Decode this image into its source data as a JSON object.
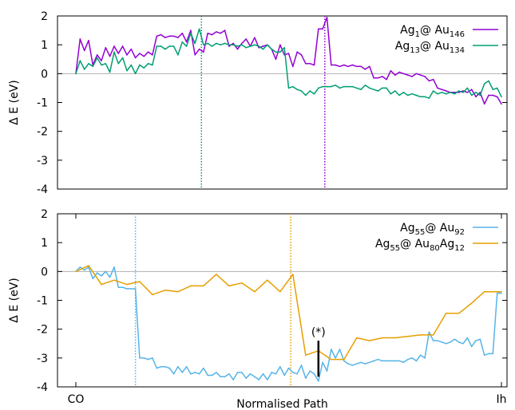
{
  "chart_data": [
    {
      "type": "line",
      "ylabel": "Δ E (eV)",
      "xlabel": "",
      "ylim": [
        -4,
        2
      ],
      "yticks": [
        2,
        1,
        0,
        -1,
        -2,
        -3,
        -4
      ],
      "xlim": [
        0,
        100
      ],
      "xtick_labels": [],
      "reference_line": 0,
      "legend_position": "top-right",
      "vlines": [
        {
          "x": 29.5,
          "series": "Ag13@Au134"
        },
        {
          "x": 58.5,
          "series": "Ag1@Au146"
        }
      ],
      "series": [
        {
          "name": "Ag1@ Au146",
          "legend": {
            "parts": [
              {
                "t": "Ag"
              },
              {
                "t": "1",
                "sub": true
              },
              {
                "t": "@ Au"
              },
              {
                "t": "146",
                "sub": true
              }
            ]
          },
          "color": "#9400d3",
          "x": [
            0,
            1,
            2,
            3,
            4,
            5,
            6,
            7,
            8,
            9,
            10,
            11,
            12,
            13,
            14,
            15,
            16,
            17,
            18,
            19,
            20,
            21,
            22,
            23,
            24,
            25,
            26,
            27,
            28,
            29,
            30,
            31,
            32,
            33,
            34,
            35,
            36,
            37,
            38,
            39,
            40,
            41,
            42,
            43,
            44,
            45,
            46,
            47,
            48,
            49,
            50,
            51,
            52,
            53,
            54,
            55,
            56,
            57,
            58,
            59,
            60,
            61,
            62,
            63,
            64,
            65,
            66,
            67,
            68,
            69,
            70,
            71,
            72,
            73,
            74,
            75,
            76,
            77,
            78,
            79,
            80,
            81,
            82,
            83,
            84,
            85,
            86,
            87,
            88,
            89,
            90,
            91,
            92,
            93,
            94,
            95,
            96,
            97,
            98,
            99,
            100
          ],
          "y": [
            0,
            1.2,
            0.8,
            1.15,
            0.3,
            0.65,
            0.45,
            0.9,
            0.6,
            0.95,
            0.7,
            0.95,
            0.65,
            0.85,
            0.55,
            0.7,
            0.6,
            0.75,
            0.65,
            1.3,
            1.35,
            1.25,
            1.3,
            1.3,
            1.25,
            1.4,
            1.1,
            1.5,
            0.65,
            0.85,
            0.75,
            1.4,
            1.35,
            1.45,
            1.4,
            1.5,
            0.95,
            1.05,
            0.85,
            1.05,
            1.2,
            0.95,
            1.25,
            0.9,
            0.95,
            1.0,
            0.85,
            0.5,
            1.0,
            0.65,
            0.7,
            0.25,
            0.75,
            0.65,
            0.35,
            0.35,
            0.3,
            1.55,
            1.55,
            1.95,
            0.3,
            0.3,
            0.25,
            0.3,
            0.25,
            0.3,
            0.25,
            0.25,
            0.15,
            0.25,
            -0.15,
            -0.15,
            -0.1,
            -0.2,
            0.1,
            -0.05,
            0.05,
            0.0,
            -0.05,
            -0.1,
            0.0,
            -0.05,
            -0.1,
            -0.25,
            -0.2,
            -0.5,
            -0.55,
            -0.6,
            -0.65,
            -0.65,
            -0.65,
            -0.6,
            -0.65,
            -0.55,
            -0.8,
            -0.65,
            -1.05,
            -0.75,
            -0.75,
            -0.8,
            -1.05
          ]
        },
        {
          "name": "Ag13@ Au134",
          "legend": {
            "parts": [
              {
                "t": "Ag"
              },
              {
                "t": "13",
                "sub": true
              },
              {
                "t": "@ Au"
              },
              {
                "t": "134",
                "sub": true
              }
            ]
          },
          "color": "#009e73",
          "x": [
            0,
            1,
            2,
            3,
            4,
            5,
            6,
            7,
            8,
            9,
            10,
            11,
            12,
            13,
            14,
            15,
            16,
            17,
            18,
            19,
            20,
            21,
            22,
            23,
            24,
            25,
            26,
            27,
            28,
            29,
            30,
            31,
            32,
            33,
            34,
            35,
            36,
            37,
            38,
            39,
            40,
            41,
            42,
            43,
            44,
            45,
            46,
            47,
            48,
            49,
            50,
            51,
            52,
            53,
            54,
            55,
            56,
            57,
            58,
            59,
            60,
            61,
            62,
            63,
            64,
            65,
            66,
            67,
            68,
            69,
            70,
            71,
            72,
            73,
            74,
            75,
            76,
            77,
            78,
            79,
            80,
            81,
            82,
            83,
            84,
            85,
            86,
            87,
            88,
            89,
            90,
            91,
            92,
            93,
            94,
            95,
            96,
            97,
            98,
            99,
            100
          ],
          "y": [
            0,
            0.45,
            0.15,
            0.35,
            0.25,
            0.55,
            0.3,
            0.35,
            0.05,
            0.75,
            0.35,
            0.55,
            0.1,
            0.3,
            0.0,
            0.3,
            0.2,
            0.35,
            0.3,
            0.95,
            0.95,
            0.85,
            0.95,
            0.95,
            0.65,
            1.1,
            0.95,
            1.4,
            1.05,
            1.55,
            1.0,
            1.05,
            0.95,
            1.05,
            1.0,
            1.05,
            1.0,
            1.0,
            0.95,
            1.0,
            0.9,
            0.95,
            1.0,
            0.95,
            0.85,
            1.0,
            0.85,
            0.75,
            0.75,
            0.9,
            -0.5,
            -0.45,
            -0.55,
            -0.6,
            -0.75,
            -0.6,
            -0.7,
            -0.5,
            -0.45,
            -0.45,
            -0.45,
            -0.4,
            -0.5,
            -0.45,
            -0.45,
            -0.45,
            -0.5,
            -0.55,
            -0.4,
            -0.5,
            -0.55,
            -0.6,
            -0.5,
            -0.5,
            -0.7,
            -0.6,
            -0.75,
            -0.65,
            -0.75,
            -0.7,
            -0.75,
            -0.8,
            -0.8,
            -0.85,
            -0.6,
            -0.7,
            -0.65,
            -0.7,
            -0.65,
            -0.7,
            -0.6,
            -0.65,
            -0.5,
            -0.75,
            -0.65,
            -0.75,
            -0.35,
            -0.25,
            -0.55,
            -0.5,
            -0.8
          ]
        }
      ]
    },
    {
      "type": "line",
      "ylabel": "Δ E (eV)",
      "xlabel": "Normalised Path",
      "ylim": [
        -4,
        2
      ],
      "yticks": [
        2,
        1,
        0,
        -1,
        -2,
        -3,
        -4
      ],
      "xlim": [
        0,
        100
      ],
      "xtick_labels": [
        {
          "x": 0,
          "label": "CO"
        },
        {
          "x": 100,
          "label": "Ih"
        }
      ],
      "reference_line": 0,
      "legend_position": "top-right",
      "vlines": [
        {
          "x": 14,
          "series": "Ag55@Au92"
        },
        {
          "x": 50.5,
          "series": "Ag55@Au80Ag12"
        }
      ],
      "annotation": {
        "text": "(*)",
        "x": 57,
        "y_from": -2.4,
        "y_to": -3.65
      },
      "series": [
        {
          "name": "Ag55@ Au92",
          "legend": {
            "parts": [
              {
                "t": "Ag"
              },
              {
                "t": "55",
                "sub": true
              },
              {
                "t": "@ Au"
              },
              {
                "t": "92",
                "sub": true
              }
            ]
          },
          "color": "#56b4e9",
          "x": [
            0,
            1,
            2,
            3,
            4,
            5,
            6,
            7,
            8,
            9,
            10,
            11,
            12,
            13,
            14,
            15,
            16,
            17,
            18,
            19,
            20,
            21,
            22,
            23,
            24,
            25,
            26,
            27,
            28,
            29,
            30,
            31,
            32,
            33,
            34,
            35,
            36,
            37,
            38,
            39,
            40,
            41,
            42,
            43,
            44,
            45,
            46,
            47,
            48,
            49,
            50,
            51,
            52,
            53,
            54,
            55,
            56,
            57,
            58,
            59,
            60,
            61,
            62,
            63,
            64,
            65,
            66,
            67,
            68,
            69,
            70,
            71,
            72,
            73,
            74,
            75,
            76,
            77,
            78,
            79,
            80,
            81,
            82,
            83,
            84,
            85,
            86,
            87,
            88,
            89,
            90,
            91,
            92,
            93,
            94,
            95,
            96,
            97,
            98,
            99,
            100
          ],
          "y": [
            0,
            0.15,
            0.05,
            0.15,
            -0.25,
            -0.05,
            -0.15,
            0.0,
            -0.2,
            0.15,
            -0.55,
            -0.55,
            -0.6,
            -0.6,
            -0.6,
            -3.0,
            -3.0,
            -3.05,
            -3.0,
            -3.35,
            -3.3,
            -3.3,
            -3.35,
            -3.55,
            -3.3,
            -3.5,
            -3.3,
            -3.55,
            -3.5,
            -3.55,
            -3.35,
            -3.6,
            -3.6,
            -3.5,
            -3.65,
            -3.65,
            -3.55,
            -3.75,
            -3.5,
            -3.5,
            -3.7,
            -3.55,
            -3.65,
            -3.75,
            -3.55,
            -3.75,
            -3.5,
            -3.55,
            -3.3,
            -3.6,
            -3.35,
            -3.5,
            -3.55,
            -3.25,
            -3.7,
            -3.45,
            -3.55,
            -3.8,
            -3.15,
            -3.45,
            -2.7,
            -3.0,
            -2.7,
            -3.1,
            -3.2,
            -3.25,
            -3.2,
            -3.15,
            -3.2,
            -3.15,
            -3.1,
            -3.05,
            -3.1,
            -3.1,
            -3.1,
            -3.1,
            -3.1,
            -3.15,
            -3.05,
            -3.0,
            -3.1,
            -2.9,
            -3.0,
            -2.1,
            -2.4,
            -2.4,
            -2.45,
            -2.5,
            -2.45,
            -2.35,
            -2.45,
            -2.5,
            -2.3,
            -2.6,
            -2.4,
            -2.35,
            -2.9,
            -2.85,
            -2.85,
            -0.75,
            -0.75
          ]
        },
        {
          "name": "Ag55@ Au80Ag12",
          "legend": {
            "parts": [
              {
                "t": "Ag"
              },
              {
                "t": "55",
                "sub": true
              },
              {
                "t": "@ Au"
              },
              {
                "t": "80",
                "sub": true
              },
              {
                "t": "Ag"
              },
              {
                "t": "12",
                "sub": true
              }
            ]
          },
          "color": "#e69f00",
          "x": [
            0,
            3,
            6,
            9,
            12,
            15,
            18,
            21,
            24,
            27,
            30,
            33,
            36,
            39,
            42,
            45,
            48,
            51,
            54,
            57,
            60,
            63,
            66,
            69,
            72,
            75,
            78,
            81,
            84,
            87,
            90,
            93,
            96,
            99,
            100
          ],
          "y": [
            0,
            0.2,
            -0.45,
            -0.3,
            -0.45,
            -0.35,
            -0.8,
            -0.65,
            -0.7,
            -0.5,
            -0.5,
            -0.1,
            -0.5,
            -0.4,
            -0.7,
            -0.3,
            -0.7,
            -0.1,
            -2.9,
            -2.75,
            -3.05,
            -3.05,
            -2.3,
            -2.4,
            -2.3,
            -2.3,
            -2.25,
            -2.2,
            -2.2,
            -1.45,
            -1.45,
            -1.1,
            -0.7,
            -0.7,
            -0.7
          ]
        }
      ]
    }
  ]
}
